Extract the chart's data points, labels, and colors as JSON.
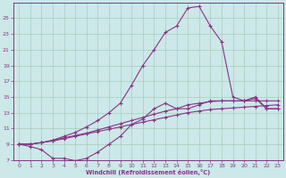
{
  "xlabel": "Windchill (Refroidissement éolien,°C)",
  "background_color": "#cce8e8",
  "grid_color": "#aaccbb",
  "line_color": "#883388",
  "xlim": [
    -0.5,
    23.5
  ],
  "ylim": [
    7,
    27
  ],
  "yticks": [
    7,
    9,
    11,
    13,
    15,
    17,
    19,
    21,
    23,
    25
  ],
  "xticks": [
    0,
    1,
    2,
    3,
    4,
    5,
    6,
    7,
    8,
    9,
    10,
    11,
    12,
    13,
    14,
    15,
    16,
    17,
    18,
    19,
    20,
    21,
    22,
    23
  ],
  "curve_peak_x": [
    0,
    1,
    2,
    3,
    4,
    5,
    6,
    7,
    8,
    9,
    10,
    11,
    12,
    13,
    14,
    15,
    16,
    17,
    18,
    19,
    20,
    21,
    22,
    23
  ],
  "curve_peak_y": [
    9.0,
    9.0,
    9.2,
    9.5,
    10.0,
    10.5,
    11.2,
    12.0,
    13.0,
    14.2,
    16.5,
    19.0,
    21.0,
    23.2,
    24.0,
    26.3,
    26.5,
    24.0,
    22.0,
    15.0,
    14.5,
    14.8,
    13.5,
    13.5
  ],
  "curve_upper_x": [
    0,
    1,
    2,
    3,
    4,
    5,
    6,
    7,
    8,
    9,
    10,
    11,
    12,
    13,
    14,
    15,
    16,
    17,
    18,
    19,
    20,
    21,
    22,
    23
  ],
  "curve_upper_y": [
    9.0,
    9.0,
    9.2,
    9.5,
    9.8,
    10.1,
    10.4,
    10.8,
    11.2,
    11.6,
    12.0,
    12.4,
    12.8,
    13.2,
    13.5,
    14.0,
    14.2,
    14.4,
    14.5,
    14.5,
    14.5,
    14.5,
    14.5,
    14.5
  ],
  "curve_mid_x": [
    0,
    1,
    2,
    3,
    4,
    5,
    6,
    7,
    8,
    9,
    10,
    11,
    12,
    13,
    14,
    15,
    16,
    17,
    18,
    19,
    20,
    21,
    22,
    23
  ],
  "curve_mid_y": [
    9.0,
    9.0,
    9.2,
    9.4,
    9.7,
    10.0,
    10.3,
    10.6,
    10.9,
    11.2,
    11.5,
    11.8,
    12.1,
    12.4,
    12.7,
    13.0,
    13.2,
    13.4,
    13.5,
    13.6,
    13.7,
    13.8,
    13.9,
    14.0
  ],
  "curve_wavy_x": [
    0,
    1,
    2,
    3,
    4,
    5,
    6,
    7,
    8,
    9,
    10,
    11,
    12,
    13,
    14,
    15,
    16,
    17,
    18,
    19,
    20,
    21,
    22,
    23
  ],
  "curve_wavy_y": [
    9.0,
    8.7,
    8.3,
    7.2,
    7.2,
    6.9,
    7.2,
    8.0,
    9.0,
    10.0,
    11.5,
    12.2,
    13.5,
    14.2,
    13.5,
    13.5,
    14.0,
    14.5,
    14.5,
    14.5,
    14.5,
    15.0,
    13.5,
    13.5
  ]
}
